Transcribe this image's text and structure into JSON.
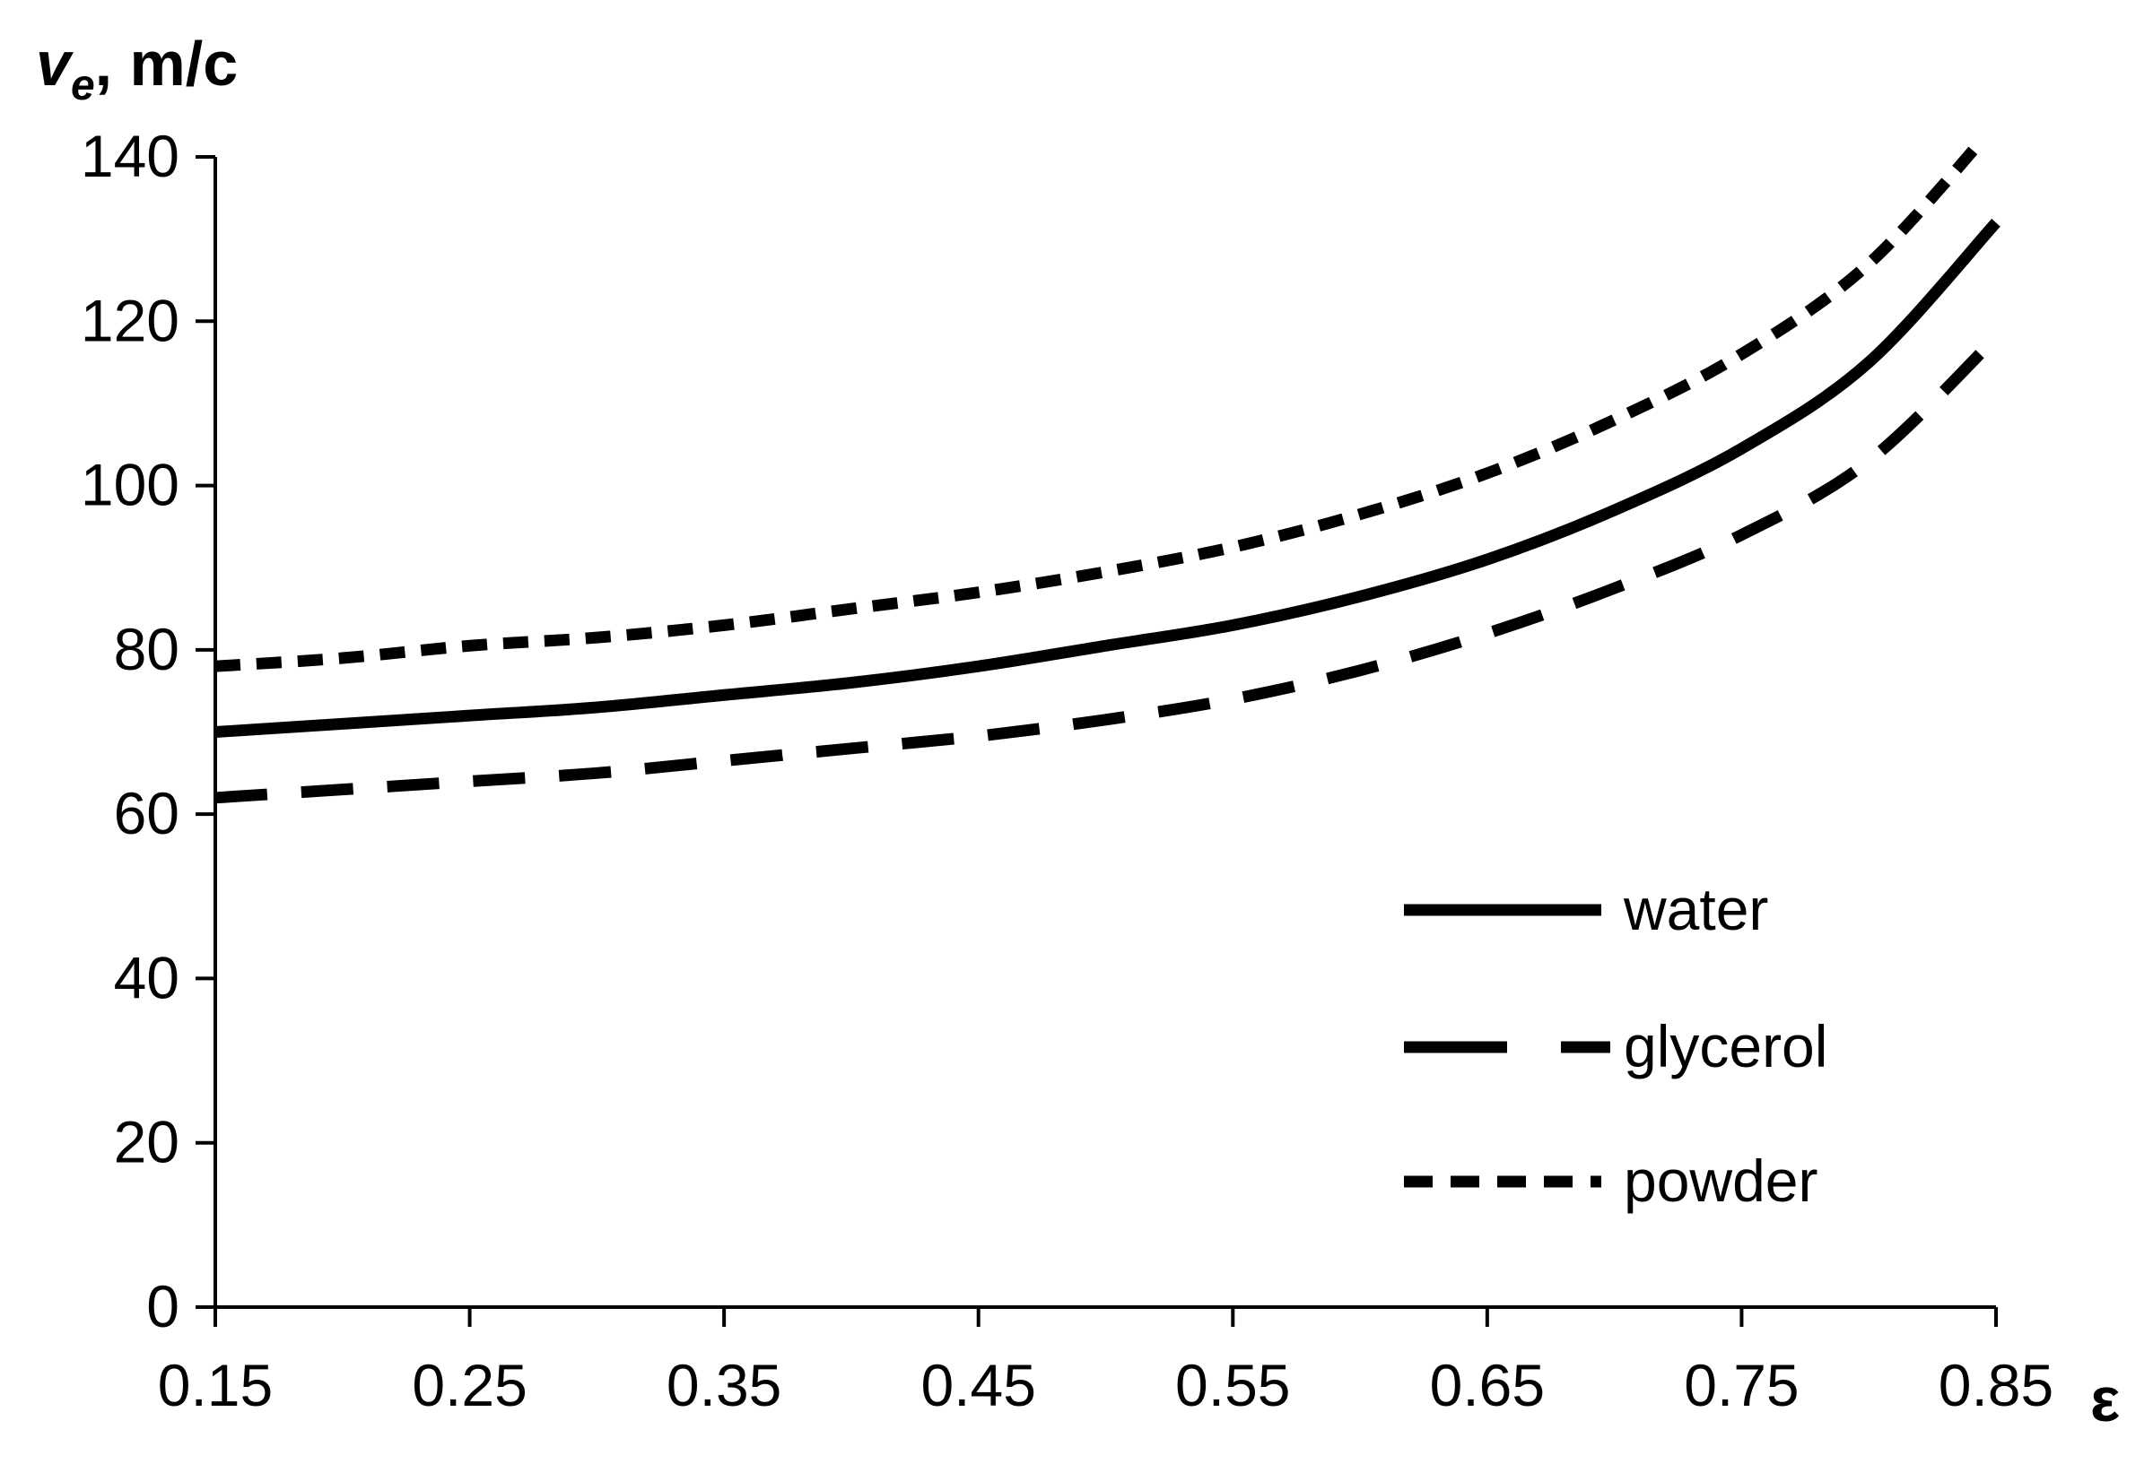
{
  "chart_data": {
    "type": "line",
    "title": "",
    "ylabel": {
      "symbol": "v",
      "subscript": "e",
      "unit": ", m/c"
    },
    "xlabel": "ε",
    "xlim": [
      0.15,
      0.85
    ],
    "ylim": [
      0,
      140
    ],
    "x_ticks": [
      "0.15",
      "0.25",
      "0.35",
      "0.45",
      "0.55",
      "0.65",
      "0.75",
      "0.85"
    ],
    "y_ticks": [
      "0",
      "20",
      "40",
      "60",
      "80",
      "100",
      "120",
      "140"
    ],
    "grid": false,
    "legend_position": "bottom-right",
    "series": [
      {
        "name": "water",
        "style": "solid",
        "x": [
          0.15,
          0.2,
          0.25,
          0.3,
          0.35,
          0.4,
          0.45,
          0.5,
          0.55,
          0.6,
          0.65,
          0.7,
          0.75,
          0.8,
          0.85
        ],
        "y": [
          70,
          71,
          72,
          73,
          74.5,
          76,
          78,
          80.5,
          83,
          86.5,
          91,
          97,
          104.5,
          115,
          132
        ]
      },
      {
        "name": "glycerol",
        "style": "long-dash",
        "x": [
          0.15,
          0.2,
          0.25,
          0.3,
          0.35,
          0.4,
          0.45,
          0.5,
          0.55,
          0.6,
          0.65,
          0.7,
          0.75,
          0.8,
          0.85
        ],
        "y": [
          62,
          63,
          64,
          65,
          66.5,
          68,
          69.5,
          71.5,
          74,
          77.5,
          82,
          87.5,
          94,
          103,
          118
        ]
      },
      {
        "name": "powder",
        "style": "short-dash",
        "x": [
          0.15,
          0.2,
          0.25,
          0.3,
          0.35,
          0.4,
          0.45,
          0.5,
          0.55,
          0.6,
          0.65,
          0.7,
          0.75,
          0.8,
          0.85
        ],
        "y": [
          78,
          79,
          80.5,
          81.5,
          83,
          85,
          87,
          89.5,
          92.5,
          96.5,
          101.5,
          108,
          116,
          127,
          144
        ]
      }
    ]
  }
}
